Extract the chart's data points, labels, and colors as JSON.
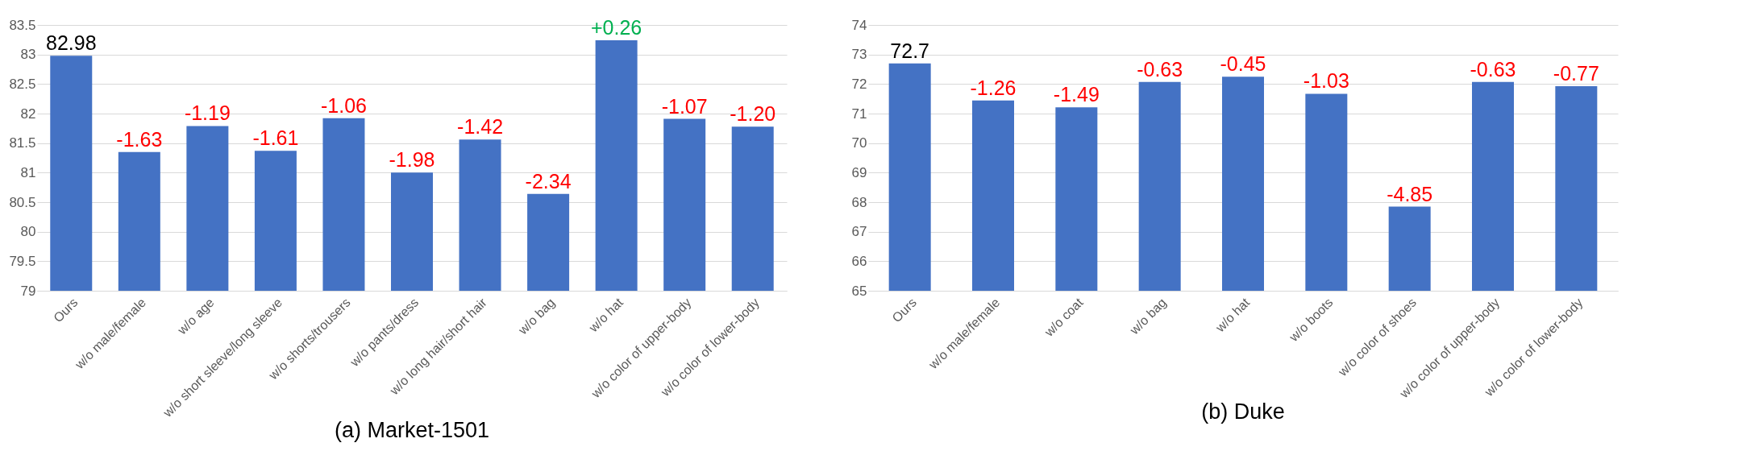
{
  "chart_data": [
    {
      "type": "bar",
      "title": "(a) Market-1501",
      "categories": [
        "Ours",
        "w/o male/female",
        "w/o age",
        "w/o short sleeve/long sleeve",
        "w/o shorts/trousers",
        "w/o pants/dress",
        "w/o long hair/short hair",
        "w/o bag",
        "w/o hat",
        "w/o color of upper-body",
        "w/o color of lower-body"
      ],
      "values": [
        82.98,
        81.35,
        81.79,
        81.37,
        81.92,
        81.0,
        81.56,
        80.64,
        83.24,
        81.91,
        81.78
      ],
      "annotations": [
        {
          "text": "82.98",
          "x": "Ours",
          "y": 82.98
        },
        {
          "text": "-1.63",
          "x": "w/o male/female",
          "y": 81.35
        },
        {
          "text": "-1.19",
          "x": "w/o age",
          "y": 81.79
        },
        {
          "text": "-1.61",
          "x": "w/o short sleeve/long sleeve",
          "y": 81.37
        },
        {
          "text": "-1.06",
          "x": "w/o shorts/trousers",
          "y": 81.92
        },
        {
          "text": "-1.98",
          "x": "w/o pants/dress",
          "y": 81.0
        },
        {
          "text": "-1.42",
          "x": "w/o long hair/short hair",
          "y": 81.56
        },
        {
          "text": "-2.34",
          "x": "w/o bag",
          "y": 80.64
        },
        {
          "text": "+0.26",
          "x": "w/o hat",
          "y": 83.24
        },
        {
          "text": "-1.07",
          "x": "w/o color of upper-body",
          "y": 81.91
        },
        {
          "text": "-1.20",
          "x": "w/o color of lower-body",
          "y": 81.78
        }
      ],
      "color": "#4472c4",
      "ylim": [
        79,
        83.5
      ],
      "yticks": [
        79,
        79.5,
        80,
        80.5,
        81,
        81.5,
        82,
        82.5,
        83,
        83.5
      ],
      "grid": "y"
    },
    {
      "type": "bar",
      "title": "(b) Duke",
      "categories": [
        "Ours",
        "w/o male/female",
        "w/o coat",
        "w/o bag",
        "w/o hat",
        "w/o boots",
        "w/o color of shoes",
        "w/o color of upper-body",
        "w/o color of lower-body"
      ],
      "values": [
        72.7,
        71.44,
        71.21,
        72.07,
        72.25,
        71.67,
        67.85,
        72.07,
        71.93
      ],
      "annotations": [
        {
          "text": "72.7",
          "x": "Ours",
          "y": 72.7
        },
        {
          "text": "-1.26",
          "x": "w/o male/female",
          "y": 71.44
        },
        {
          "text": "-1.49",
          "x": "w/o coat",
          "y": 71.21
        },
        {
          "text": "-0.63",
          "x": "w/o bag",
          "y": 72.07
        },
        {
          "text": "-0.45",
          "x": "w/o hat",
          "y": 72.25
        },
        {
          "text": "-1.03",
          "x": "w/o boots",
          "y": 71.67
        },
        {
          "text": "-4.85",
          "x": "w/o color of shoes",
          "y": 67.85
        },
        {
          "text": "-0.63",
          "x": "w/o color of upper-body",
          "y": 72.07
        },
        {
          "text": "-0.77",
          "x": "w/o color of lower-body",
          "y": 71.93
        }
      ],
      "color": "#4472c4",
      "ylim": [
        65,
        74
      ],
      "yticks": [
        65,
        66,
        67,
        68,
        69,
        70,
        71,
        72,
        73,
        74
      ],
      "grid": "y"
    }
  ]
}
